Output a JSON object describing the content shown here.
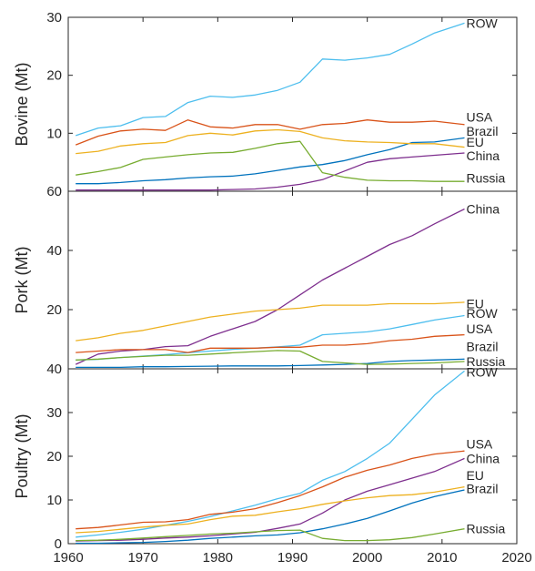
{
  "chart_data": [
    {
      "type": "line",
      "ylabel": "Bovine (Mt)",
      "ylim": [
        0,
        30
      ],
      "yticks": [
        10,
        20,
        30
      ],
      "xlim": [
        1960,
        2020
      ],
      "xticks": [
        1960,
        1970,
        1980,
        1990,
        2000,
        2010,
        2020
      ],
      "x_tick_labels_shown": false,
      "x": [
        1961,
        1964,
        1967,
        1970,
        1973,
        1976,
        1979,
        1982,
        1985,
        1988,
        1991,
        1994,
        1997,
        2000,
        2003,
        2006,
        2009,
        2013
      ],
      "series": [
        {
          "name": "ROW",
          "color": "#4DBEEE",
          "values": [
            9.6,
            10.9,
            11.3,
            12.7,
            12.9,
            15.3,
            16.4,
            16.2,
            16.6,
            17.4,
            18.8,
            22.8,
            22.6,
            23.0,
            23.6,
            25.4,
            27.3,
            29.0
          ]
        },
        {
          "name": "USA",
          "color": "#D95319",
          "values": [
            8.0,
            9.5,
            10.4,
            10.7,
            10.5,
            12.3,
            11.1,
            10.9,
            11.5,
            11.5,
            10.7,
            11.5,
            11.7,
            12.3,
            11.9,
            11.9,
            12.1,
            11.5
          ]
        },
        {
          "name": "Brazil",
          "color": "#0072BD",
          "values": [
            1.3,
            1.3,
            1.5,
            1.8,
            2.0,
            2.3,
            2.5,
            2.6,
            3.0,
            3.6,
            4.2,
            4.6,
            5.3,
            6.3,
            7.2,
            8.4,
            8.5,
            9.2
          ]
        },
        {
          "name": "EU",
          "color": "#EDB120",
          "values": [
            6.5,
            6.9,
            7.8,
            8.2,
            8.4,
            9.6,
            10.0,
            9.7,
            10.4,
            10.6,
            10.3,
            9.2,
            8.7,
            8.5,
            8.4,
            8.2,
            8.2,
            7.6
          ]
        },
        {
          "name": "China",
          "color": "#7E2F8E",
          "values": [
            0.2,
            0.2,
            0.2,
            0.2,
            0.2,
            0.2,
            0.2,
            0.3,
            0.4,
            0.7,
            1.2,
            2.0,
            3.5,
            5.0,
            5.6,
            5.9,
            6.2,
            6.6
          ]
        },
        {
          "name": "Russia",
          "color": "#77AC30",
          "values": [
            2.8,
            3.4,
            4.1,
            5.5,
            5.9,
            6.3,
            6.6,
            6.7,
            7.4,
            8.2,
            8.6,
            3.2,
            2.4,
            1.9,
            1.8,
            1.8,
            1.7,
            1.7
          ]
        }
      ]
    },
    {
      "type": "line",
      "ylabel": "Pork (Mt)",
      "ylim": [
        0,
        60
      ],
      "yticks": [
        20,
        40,
        60
      ],
      "xlim": [
        1960,
        2020
      ],
      "xticks": [
        1960,
        1970,
        1980,
        1990,
        2000,
        2010,
        2020
      ],
      "x_tick_labels_shown": false,
      "x": [
        1961,
        1964,
        1967,
        1970,
        1973,
        1976,
        1979,
        1982,
        1985,
        1988,
        1991,
        1994,
        1997,
        2000,
        2003,
        2006,
        2009,
        2013
      ],
      "series": [
        {
          "name": "China",
          "color": "#7E2F8E",
          "values": [
            1.5,
            5.0,
            6.0,
            6.5,
            7.5,
            7.8,
            11.0,
            13.5,
            16.0,
            20.0,
            25.0,
            30.0,
            34.0,
            38.0,
            42.0,
            45.0,
            49.0,
            54.0
          ]
        },
        {
          "name": "EU",
          "color": "#EDB120",
          "values": [
            9.5,
            10.5,
            12.0,
            13.0,
            14.5,
            16.0,
            17.5,
            18.5,
            19.5,
            20.0,
            20.5,
            21.5,
            21.5,
            21.5,
            22.0,
            22.0,
            22.0,
            22.5
          ]
        },
        {
          "name": "ROW",
          "color": "#4DBEEE",
          "values": [
            3.0,
            3.2,
            3.8,
            4.3,
            4.8,
            5.4,
            6.0,
            6.6,
            7.0,
            7.4,
            8.0,
            11.5,
            12.0,
            12.5,
            13.5,
            15.0,
            16.5,
            18.0
          ]
        },
        {
          "name": "USA",
          "color": "#D95319",
          "values": [
            5.5,
            6.0,
            6.5,
            6.5,
            6.5,
            5.5,
            7.0,
            7.0,
            7.0,
            7.3,
            7.3,
            8.0,
            8.0,
            8.5,
            9.5,
            10.0,
            11.0,
            11.5
          ]
        },
        {
          "name": "Brazil",
          "color": "#0072BD",
          "values": [
            0.5,
            0.5,
            0.5,
            0.7,
            0.7,
            0.8,
            0.9,
            1.0,
            1.0,
            1.0,
            1.1,
            1.3,
            1.5,
            1.8,
            2.5,
            2.8,
            3.0,
            3.3
          ]
        },
        {
          "name": "Russia",
          "color": "#77AC30",
          "values": [
            3.0,
            3.3,
            3.8,
            4.2,
            4.6,
            4.6,
            5.0,
            5.4,
            5.8,
            6.2,
            6.0,
            2.5,
            2.0,
            1.5,
            1.6,
            1.8,
            2.0,
            2.5
          ]
        }
      ]
    },
    {
      "type": "line",
      "ylabel": "Poultry (Mt)",
      "ylim": [
        0,
        40
      ],
      "yticks": [
        0,
        10,
        20,
        30,
        40
      ],
      "xlim": [
        1960,
        2020
      ],
      "xticks": [
        1960,
        1970,
        1980,
        1990,
        2000,
        2010,
        2020
      ],
      "x_tick_labels_shown": true,
      "x": [
        1961,
        1964,
        1967,
        1970,
        1973,
        1976,
        1979,
        1982,
        1985,
        1988,
        1991,
        1994,
        1997,
        2000,
        2003,
        2006,
        2009,
        2013
      ],
      "series": [
        {
          "name": "ROW",
          "color": "#4DBEEE",
          "values": [
            1.5,
            2.0,
            2.6,
            3.3,
            4.2,
            5.1,
            6.2,
            7.5,
            8.8,
            10.3,
            11.5,
            14.5,
            16.5,
            19.5,
            23.0,
            28.5,
            34.0,
            39.5
          ]
        },
        {
          "name": "USA",
          "color": "#D95319",
          "values": [
            3.4,
            3.7,
            4.3,
            4.9,
            5.0,
            5.5,
            6.7,
            7.2,
            8.0,
            9.4,
            11.0,
            13.0,
            15.2,
            16.8,
            18.0,
            19.5,
            20.5,
            21.2
          ]
        },
        {
          "name": "China",
          "color": "#7E2F8E",
          "values": [
            0.6,
            0.7,
            0.8,
            1.0,
            1.3,
            1.5,
            1.8,
            2.2,
            2.6,
            3.5,
            4.5,
            7.0,
            10.0,
            12.0,
            13.5,
            15.0,
            16.5,
            19.5
          ]
        },
        {
          "name": "EU",
          "color": "#EDB120",
          "values": [
            2.5,
            2.8,
            3.3,
            3.8,
            4.2,
            4.5,
            5.5,
            6.3,
            6.5,
            7.3,
            8.0,
            9.0,
            9.8,
            10.5,
            11.0,
            11.2,
            11.8,
            13.0
          ]
        },
        {
          "name": "Brazil",
          "color": "#0072BD",
          "values": [
            0.1,
            0.1,
            0.2,
            0.3,
            0.5,
            0.8,
            1.2,
            1.5,
            1.8,
            2.0,
            2.5,
            3.4,
            4.5,
            5.8,
            7.5,
            9.3,
            10.8,
            12.3
          ]
        },
        {
          "name": "Russia",
          "color": "#77AC30",
          "values": [
            0.7,
            0.8,
            1.0,
            1.3,
            1.6,
            1.9,
            2.2,
            2.4,
            2.7,
            3.0,
            3.1,
            1.2,
            0.7,
            0.7,
            0.9,
            1.4,
            2.2,
            3.4
          ]
        }
      ]
    }
  ]
}
